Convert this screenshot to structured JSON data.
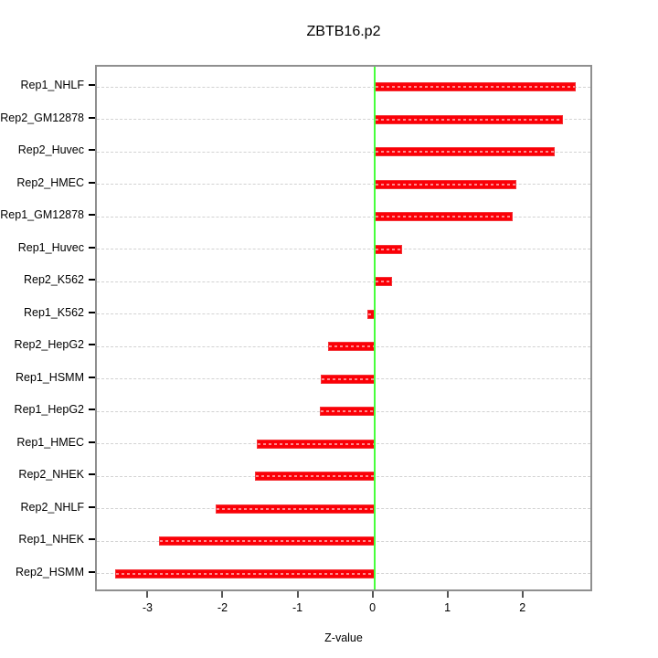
{
  "chart_data": {
    "type": "bar",
    "orientation": "horizontal",
    "title": "ZBTB16.p2",
    "xlabel": "Z-value",
    "ylabel": "",
    "categories": [
      "Rep1_NHLF",
      "Rep2_GM12878",
      "Rep2_Huvec",
      "Rep2_HMEC",
      "Rep1_GM12878",
      "Rep1_Huvec",
      "Rep2_K562",
      "Rep1_K562",
      "Rep2_HepG2",
      "Rep1_HSMM",
      "Rep1_HepG2",
      "Rep1_HMEC",
      "Rep2_NHEK",
      "Rep2_NHLF",
      "Rep1_NHEK",
      "Rep2_HSMM"
    ],
    "values": [
      2.69,
      2.52,
      2.41,
      1.9,
      1.85,
      0.37,
      0.24,
      -0.09,
      -0.62,
      -0.71,
      -0.73,
      -1.57,
      -1.59,
      -2.12,
      -2.87,
      -3.46
    ],
    "x_ticks": [
      -3,
      -2,
      -1,
      0,
      1,
      2
    ],
    "xlim": [
      -3.7,
      2.93
    ],
    "grid": true,
    "legend": "none",
    "bar_color": "#fb0007",
    "zero_line_color": "#46ff3c",
    "grid_color": "#d2d2d2",
    "border_color": "#8f8f8f"
  }
}
